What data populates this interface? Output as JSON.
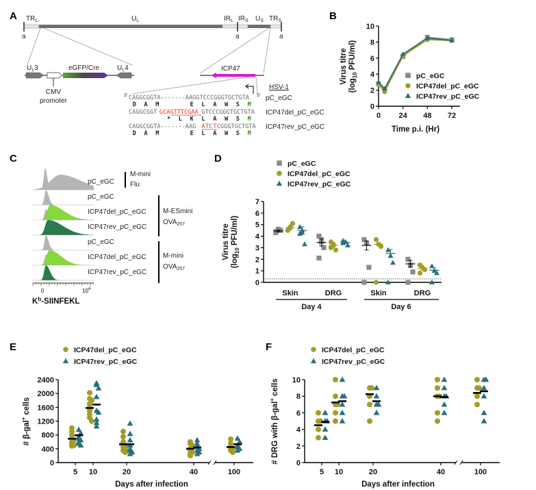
{
  "panel_labels": {
    "a": "A",
    "b": "B",
    "c": "C",
    "d": "D",
    "e": "E",
    "f": "F"
  },
  "panel_a": {
    "genome_regions": [
      "TR",
      "U",
      "IR",
      "IR",
      "U",
      "TR"
    ],
    "region_subscripts": [
      "L",
      "L",
      "L",
      "S",
      "S",
      "S"
    ],
    "a_sequence_label": "a",
    "cassette": {
      "ul3": "U",
      "ul3_sub": "L",
      "ul3_num": "3",
      "egfp": "eGFP/Cre",
      "ul4": "U",
      "ul4_sub": "L",
      "ul4_num": "4",
      "cmv": "CMV",
      "promoter": "promoter"
    },
    "icp47_label": "ICP47",
    "strain": "HSV-1",
    "three_prime": "3'",
    "five_prime": "5'",
    "sequences": [
      {
        "name": "pC_eGC",
        "parts": [
          "CAGGCGGTA-------AAGGTCCCGGGTGCTGTA"
        ],
        "aa": " D  A  M        E  L  A  W  S  ",
        "aa_start": "M"
      },
      {
        "name": "ICP47del_pC_eGC",
        "parts": [
          "CAGGCGGT",
          "GCAGTTTCGAA",
          "GTCCCGGGTGCTGTA"
        ],
        "aa": "          *  L  K  L  A  W  S  ",
        "aa_start": "M"
      },
      {
        "name": "ICP47rev_pC_eGC",
        "parts": [
          "CAGGCGGTA-------AAG",
          "A",
          "TC",
          "T",
          "CGGGTGCTGTA"
        ],
        "aa": " D  A  M        E  L  A  W  S  ",
        "aa_start": "M"
      }
    ]
  },
  "panel_c": {
    "rows": [
      "pC_eGC",
      "pC_eGC",
      "ICP47del_pC_eGC",
      "ICP47rev_pC_eGC",
      "pC_eGC",
      "ICP47del_pC_eGC",
      "ICP47rev_pC_eGC"
    ],
    "groups": [
      {
        "line1": "M-mini",
        "line2": "Flu",
        "sub": ""
      },
      {
        "line1": "M-ESmini",
        "line2": "OVA",
        "sub": "257"
      },
      {
        "line1": "M-mini",
        "line2": "OVA",
        "sub": "257"
      }
    ],
    "x_ticks": [
      "0",
      "10"
    ],
    "x_tick_exp": "4",
    "xlabel": "K",
    "xlabel_sup": "b",
    "xlabel_rest": "-SIINFEKL",
    "colors": {
      "control": "#b5b5b5",
      "del": "#86d83c",
      "rev": "#2b7a4c"
    }
  },
  "colors": {
    "pC_eGC": "#8a8a8a",
    "ICP47del_pC_eGC": "#a39d26",
    "ICP47rev_pC_eGC": "#2c6e7c"
  },
  "chart_data": [
    {
      "id": "B",
      "type": "line",
      "xlabel": "Time p.i. (Hr)",
      "ylabel": "Virus titre",
      "ylabel2": "(log",
      "ylabel_sub": "10",
      "ylabel_rest": " PFU/ml)",
      "x": [
        0,
        6,
        24,
        48,
        72
      ],
      "x_ticks": [
        0,
        24,
        48,
        72
      ],
      "y_ticks": [
        0,
        2,
        4,
        6,
        8,
        10
      ],
      "ylim": [
        0,
        10
      ],
      "xlim": [
        0,
        72
      ],
      "legend_position": "center-right",
      "series": [
        {
          "name": "pC_eGC",
          "marker": "square",
          "values": [
            2.8,
            2.1,
            6.2,
            8.6,
            8.3
          ]
        },
        {
          "name": "ICP47del_pC_eGC",
          "marker": "circle",
          "values": [
            2.7,
            1.8,
            6.3,
            8.3,
            8.2
          ]
        },
        {
          "name": "ICP47rev_pC_eGC",
          "marker": "triangle",
          "values": [
            3.0,
            2.2,
            6.5,
            8.5,
            8.2
          ]
        }
      ]
    },
    {
      "id": "D",
      "type": "scatter",
      "ylabel": "Virus titre",
      "ylabel2": "(log",
      "ylabel_sub": "10",
      "ylabel_rest": " PFU/ml)",
      "y_ticks": [
        0,
        1,
        2,
        3,
        4,
        5,
        6,
        7
      ],
      "ylim": [
        0,
        7
      ],
      "detection_limit": 0.3,
      "categories": [
        "Skin",
        "DRG",
        "Skin",
        "DRG"
      ],
      "days": [
        "Day 4",
        "Day 6"
      ],
      "legend_position": "top-left",
      "series": [
        {
          "name": "pC_eGC",
          "marker": "square",
          "points": [
            [
              4.3,
              4.5,
              4.5,
              4.4,
              4.6
            ],
            [
              4.0,
              3.5,
              3.0,
              2.1,
              3.7
            ],
            [
              3.7,
              3.4,
              1.3,
              0
            ],
            [
              2.0,
              1.5,
              0.9,
              0
            ]
          ],
          "mean": [
            4.45,
            3.45,
            3.2,
            1.6
          ],
          "sem": [
            0.08,
            0.3,
            0.4,
            0.3
          ]
        },
        {
          "name": "ICP47del_pC_eGC",
          "marker": "circle",
          "points": [
            [
              4.5,
              4.7,
              5.1,
              4.5,
              4.8
            ],
            [
              3.5,
              3.2,
              2.8,
              3.0,
              3.3
            ],
            [
              3.7,
              3.3,
              3.1,
              0
            ],
            [
              1.5,
              1.3,
              1.1,
              0.8
            ]
          ],
          "mean": [
            4.75,
            3.2,
            3.3,
            1.2
          ],
          "sem": [
            0.12,
            0.15,
            0.15,
            0.15
          ]
        },
        {
          "name": "ICP47rev_pC_eGC",
          "marker": "triangle",
          "points": [
            [
              4.8,
              4.3,
              3.3,
              4.2,
              4.5
            ],
            [
              3.6,
              3.5,
              3.2,
              3.4,
              3.5
            ],
            [
              2.8,
              2.3,
              1.7,
              0
            ],
            [
              1.4,
              1.0,
              0.8,
              0
            ]
          ],
          "mean": [
            4.5,
            3.45,
            2.5,
            1.05
          ],
          "sem": [
            0.3,
            0.1,
            0.35,
            0.2
          ]
        }
      ]
    },
    {
      "id": "E",
      "type": "scatter",
      "xlabel": "Days after infection",
      "ylabel": "# β-gal",
      "ylabel_sup": "+",
      "ylabel_rest": " cells",
      "x": [
        5,
        10,
        20,
        40,
        100
      ],
      "x_ticks": [
        "5",
        "10",
        "20",
        "40",
        "100"
      ],
      "y_ticks": [
        0,
        400,
        800,
        1200,
        1600,
        2000,
        2400
      ],
      "ylim": [
        0,
        2400
      ],
      "axis_break": "between 40 and 100",
      "legend_position": "top-left",
      "series": [
        {
          "name": "ICP47del_pC_eGC",
          "marker": "circle",
          "points": [
            [
              1000,
              900,
              800,
              700,
              650,
              600,
              550,
              500,
              480
            ],
            [
              2020,
              1850,
              1800,
              1700,
              1600,
              1500,
              1400,
              1300,
              1200
            ],
            [
              900,
              750,
              600,
              550,
              500,
              450,
              400,
              350,
              300
            ],
            [
              600,
              550,
              500,
              400,
              350,
              300,
              250,
              200
            ],
            [
              680,
              550,
              450,
              400,
              350,
              300
            ]
          ],
          "mean": [
            690,
            1580,
            530,
            400,
            450
          ]
        },
        {
          "name": "ICP47rev_pC_eGC",
          "marker": "triangle",
          "points": [
            [
              950,
              850,
              750,
              700,
              650,
              600,
              550,
              500
            ],
            [
              2300,
              2250,
              2150,
              1900,
              1500,
              1450,
              1250,
              1150,
              1050
            ],
            [
              1130,
              830,
              650,
              500,
              400,
              350,
              300,
              250
            ],
            [
              650,
              550,
              450,
              400,
              350,
              300,
              250
            ],
            [
              700,
              600,
              500,
              450,
              400,
              350
            ]
          ],
          "mean": [
            790,
            1680,
            530,
            440,
            530
          ]
        }
      ]
    },
    {
      "id": "F",
      "type": "scatter",
      "xlabel": "Days after infection",
      "ylabel": "# DRG with β-gal",
      "ylabel_sup": "+",
      "ylabel_rest": " cells",
      "x": [
        5,
        10,
        20,
        40,
        100
      ],
      "x_ticks": [
        "5",
        "10",
        "20",
        "40",
        "100"
      ],
      "y_ticks": [
        0,
        2,
        4,
        6,
        8,
        10
      ],
      "ylim": [
        0,
        10
      ],
      "axis_break": "between 40 and 100",
      "legend_position": "top-left",
      "series": [
        {
          "name": "ICP47del_pC_eGC",
          "marker": "circle",
          "points": [
            [
              6,
              5,
              4,
              3,
              5
            ],
            [
              10,
              8,
              7,
              6,
              5,
              7
            ],
            [
              9,
              8,
              7,
              5,
              9
            ],
            [
              10,
              9,
              8,
              6,
              5,
              8
            ],
            [
              10,
              9,
              8,
              7,
              9
            ]
          ],
          "mean": [
            4.5,
            7.25,
            8.25,
            8.0,
            8.4
          ]
        },
        {
          "name": "ICP47rev_pC_eGC",
          "marker": "triangle",
          "points": [
            [
              6,
              5,
              4,
              3,
              5
            ],
            [
              10,
              8,
              7,
              6,
              5,
              8
            ],
            [
              9,
              8,
              7,
              6,
              7
            ],
            [
              10,
              9,
              8,
              7,
              6,
              8
            ],
            [
              10,
              9,
              8,
              6,
              5,
              10
            ]
          ],
          "mean": [
            4.9,
            7.4,
            7.4,
            7.9,
            8.6
          ]
        }
      ]
    }
  ]
}
